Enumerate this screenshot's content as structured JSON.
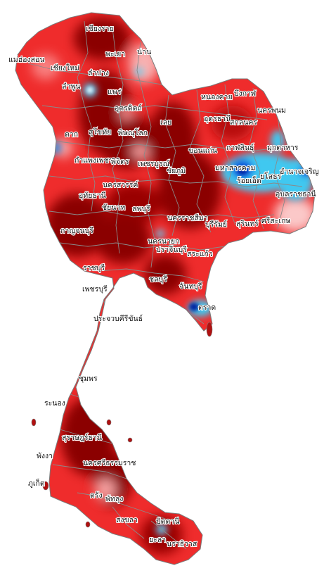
{
  "map": {
    "colors": {
      "background": "#ffffff",
      "dark_red": "#8b0000",
      "red": "#d81818",
      "bright_red": "#f03030",
      "light_red": "#f88080",
      "pink": "#fbc8c8",
      "light_blue": "#40c8f0",
      "blue": "#1060e0",
      "dark_blue": "#0020a0",
      "boundary": "#8a8a8a"
    },
    "provinces": [
      {
        "id": "chiang-rai",
        "label": "เชียงราย"
      },
      {
        "id": "phayao",
        "label": "พะเยา"
      },
      {
        "id": "nan",
        "label": "น่าน"
      },
      {
        "id": "mae-hong-son",
        "label": "แม่ฮ่องสอน"
      },
      {
        "id": "chiang-mai",
        "label": "เชียงใหม่"
      },
      {
        "id": "lampang",
        "label": "ลำปาง"
      },
      {
        "id": "lamphun",
        "label": "ลำพูน"
      },
      {
        "id": "phrae",
        "label": "แพร่"
      },
      {
        "id": "uttaradit",
        "label": "อุตรดิตถ์"
      },
      {
        "id": "tak",
        "label": "ตาก"
      },
      {
        "id": "sukhothai",
        "label": "สุโขทัย"
      },
      {
        "id": "phitsanulok",
        "label": "พิษณุโลก"
      },
      {
        "id": "loei",
        "label": "เลย"
      },
      {
        "id": "nong-khai",
        "label": "หนองคาย"
      },
      {
        "id": "bueng-kan",
        "label": "บึงกาฬ"
      },
      {
        "id": "udon-thani",
        "label": "อุดรธานี"
      },
      {
        "id": "sakon-nakhon",
        "label": "สกลนคร"
      },
      {
        "id": "nakhon-phanom",
        "label": "นครพนม"
      },
      {
        "id": "kamphaeng-phet",
        "label": "กำแพงเพชร"
      },
      {
        "id": "phichit",
        "label": "พิจิตร"
      },
      {
        "id": "phetchabun",
        "label": "เพชรบูรณ์"
      },
      {
        "id": "khon-kaen",
        "label": "ขอนแก่น"
      },
      {
        "id": "kalasin",
        "label": "กาฬสินธุ์"
      },
      {
        "id": "mukdahan",
        "label": "มุกดาหาร"
      },
      {
        "id": "chaiyaphum",
        "label": "ชัยภูมิ"
      },
      {
        "id": "maha-sarakham",
        "label": "มหาสารคาม"
      },
      {
        "id": "roi-et",
        "label": "ร้อยเอ็ด"
      },
      {
        "id": "yasothon",
        "label": "ยโสธร"
      },
      {
        "id": "amnat-charoen",
        "label": "อำนาจเจริญ"
      },
      {
        "id": "nakhon-sawan",
        "label": "นครสวรรค์"
      },
      {
        "id": "uthai-thani",
        "label": "อุทัยธานี"
      },
      {
        "id": "chai-nat",
        "label": "ชัยนาท"
      },
      {
        "id": "lopburi",
        "label": "ลพบุรี"
      },
      {
        "id": "ubon-ratchathani",
        "label": "อุบลราชธานี"
      },
      {
        "id": "nakhon-ratchasima",
        "label": "นครราชสีมา"
      },
      {
        "id": "buriram",
        "label": "บุรีรัมย์"
      },
      {
        "id": "surin",
        "label": "สุรินทร์"
      },
      {
        "id": "sisaket",
        "label": "ศรีสะเกษ"
      },
      {
        "id": "kanchanaburi",
        "label": "กาญจนบุรี"
      },
      {
        "id": "nakhon-nayok",
        "label": "นครนายก"
      },
      {
        "id": "prachinburi",
        "label": "ปราจีนบุรี"
      },
      {
        "id": "sa-kaeo",
        "label": "สระแก้ว"
      },
      {
        "id": "ratchaburi",
        "label": "ราชบุรี"
      },
      {
        "id": "chonburi",
        "label": "ชลบุรี"
      },
      {
        "id": "chanthaburi",
        "label": "จันทบุรี"
      },
      {
        "id": "phetchaburi",
        "label": "เพชรบุรี"
      },
      {
        "id": "trat",
        "label": "ตราด"
      },
      {
        "id": "prachuap",
        "label": "ประจวบคีรีขันธ์"
      },
      {
        "id": "chumphon",
        "label": "ชุมพร"
      },
      {
        "id": "ranong",
        "label": "ระนอง"
      },
      {
        "id": "surat-thani",
        "label": "สุราษฎร์ธานี"
      },
      {
        "id": "phang-nga",
        "label": "พังงา"
      },
      {
        "id": "nakhon-si-thammarat",
        "label": "นครศรีธรรมราช"
      },
      {
        "id": "phuket",
        "label": "ภูเก็ต"
      },
      {
        "id": "trang",
        "label": "ตรัง"
      },
      {
        "id": "phatthalung",
        "label": "พัทลุง"
      },
      {
        "id": "songkhla",
        "label": "สงขลา"
      },
      {
        "id": "pattani",
        "label": "ปัตตานี"
      },
      {
        "id": "yala",
        "label": "ยะลา"
      },
      {
        "id": "narathiwat",
        "label": "นราธิวาส"
      }
    ]
  }
}
